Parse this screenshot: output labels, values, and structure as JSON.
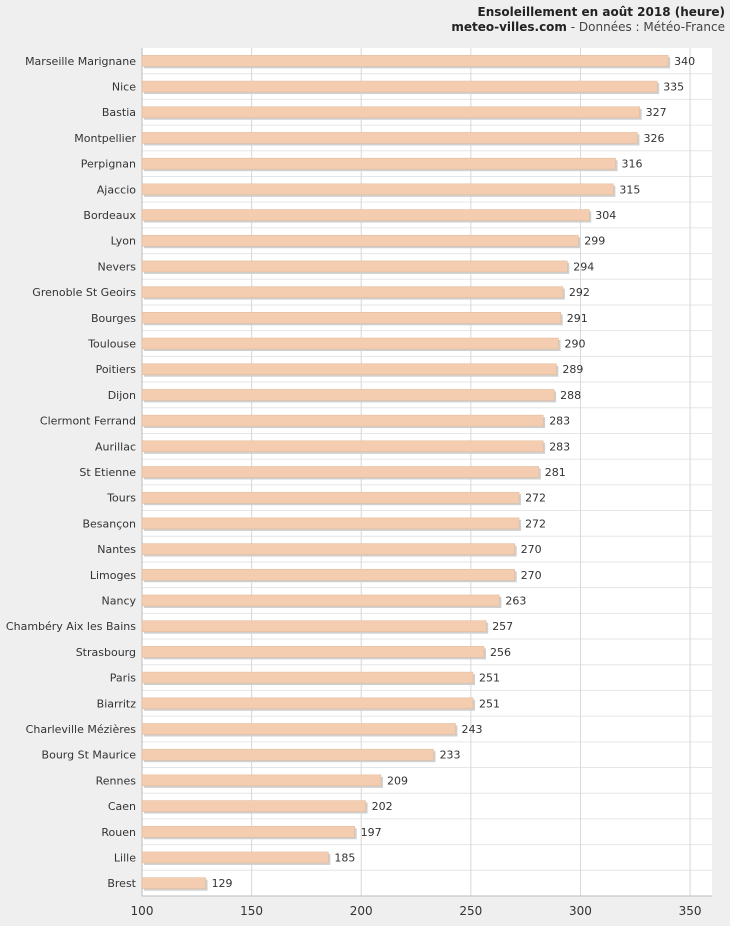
{
  "header": {
    "title": "Ensoleillement en août 2018 (heure)",
    "site": "meteo-villes.com",
    "source_suffix": " - Données : Météo-France"
  },
  "colors": {
    "bar_fill": "#f4cdb0",
    "bar_stroke": "#e0b898",
    "grid": "#d8d8d8",
    "plot_bg": "#ffffff",
    "page_bg": "#efefef",
    "text": "#333333"
  },
  "chart_data": {
    "type": "bar",
    "orientation": "horizontal",
    "categories": [
      "Marseille Marignane",
      "Nice",
      "Bastia",
      "Montpellier",
      "Perpignan",
      "Ajaccio",
      "Bordeaux",
      "Lyon",
      "Nevers",
      "Grenoble St Geoirs",
      "Bourges",
      "Toulouse",
      "Poitiers",
      "Dijon",
      "Clermont Ferrand",
      "Aurillac",
      "St Etienne",
      "Tours",
      "Besançon",
      "Nantes",
      "Limoges",
      "Nancy",
      "Chambéry Aix les Bains",
      "Strasbourg",
      "Paris",
      "Biarritz",
      "Charleville Mézières",
      "Bourg St Maurice",
      "Rennes",
      "Caen",
      "Rouen",
      "Lille",
      "Brest"
    ],
    "values": [
      340,
      335,
      327,
      326,
      316,
      315,
      304,
      299,
      294,
      292,
      291,
      290,
      289,
      288,
      283,
      283,
      281,
      272,
      272,
      270,
      270,
      263,
      257,
      256,
      251,
      251,
      243,
      233,
      209,
      202,
      197,
      185,
      129
    ],
    "xlim": [
      100,
      360
    ],
    "xticks": [
      100,
      150,
      200,
      250,
      300,
      350
    ],
    "grid": true,
    "data_labels": true
  }
}
